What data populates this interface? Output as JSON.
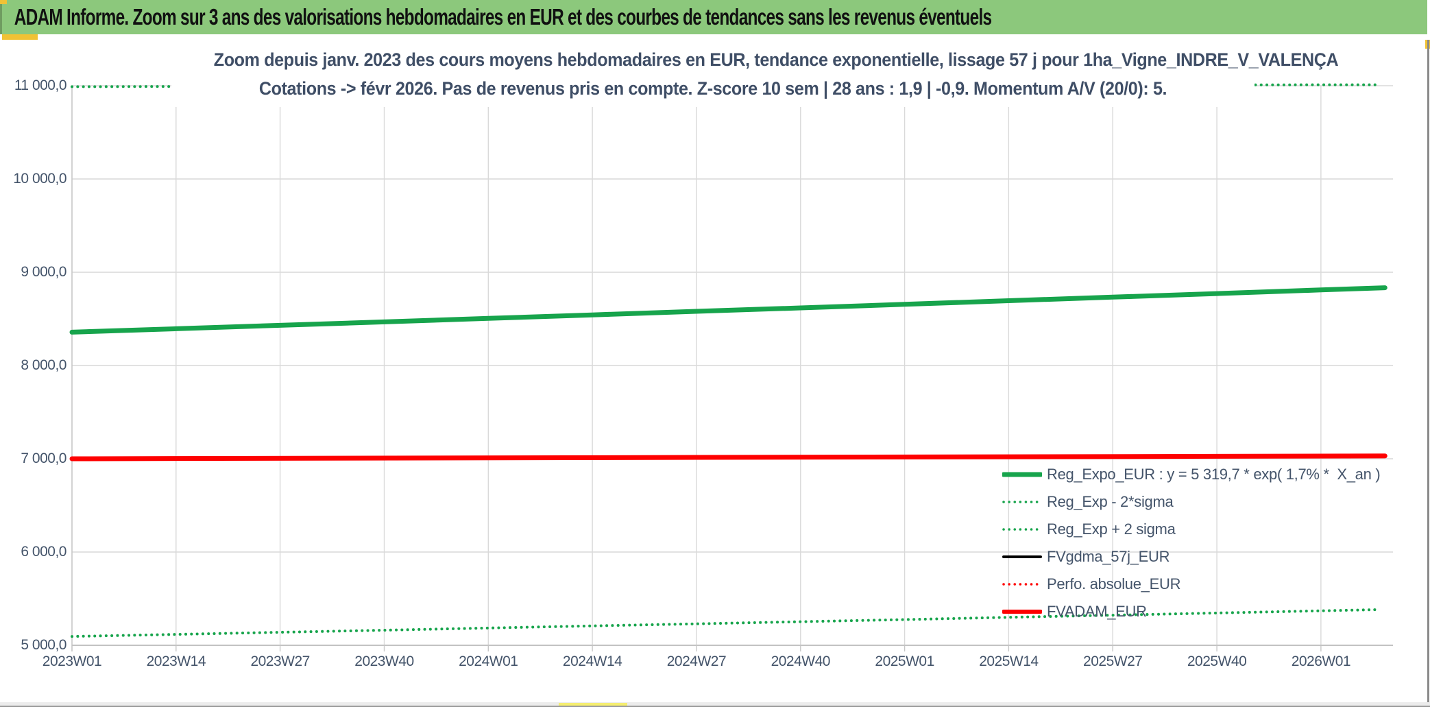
{
  "header": {
    "title": "ADAM Informe. Zoom sur 3 ans des valorisations hebdomadaires en EUR et des courbes de tendances sans les revenus éventuels"
  },
  "colors": {
    "header_bg": "#8cc87c",
    "accent_yellow": "#f0c235",
    "series_green": "#17a44c",
    "series_red": "#fe0000",
    "series_black": "#000000",
    "text_blue_gray": "#44546a",
    "gridline": "#d9d9d9"
  },
  "chart_data": {
    "type": "line",
    "title_line1": "Zoom depuis janv. 2023 des cours moyens hebdomadaires en EUR, tendance exponentielle, lissage 57 j pour 1ha_Vigne_INDRE_V_VALENÇA",
    "title_line2": "Cotations -> févr 2026. Pas de revenus pris en compte. Z-score 10 sem | 28 ans : 1,9 | -0,9. Momentum A/V (20/0): 5.",
    "xlabel": "",
    "ylabel": "",
    "ylim": [
      5000,
      11000
    ],
    "grid": true,
    "legend_position": "inside-bottom-right",
    "y_tick_values": [
      11000,
      10000,
      9000,
      8000,
      7000,
      6000,
      5000
    ],
    "y_tick_labels": [
      "11 000,0",
      "10 000,0",
      "9 000,0",
      "8 000,0",
      "7 000,0",
      "6 000,0",
      "5 000,0"
    ],
    "x_tick_labels": [
      "2023W01",
      "2023W14",
      "2023W27",
      "2023W40",
      "2024W01",
      "2024W14",
      "2024W27",
      "2024W40",
      "2025W01",
      "2025W14",
      "2025W27",
      "2025W40",
      "2026W01"
    ],
    "x_tick_weeks": [
      0,
      13,
      26,
      39,
      52,
      65,
      78,
      91,
      104,
      117,
      130,
      143,
      156
    ],
    "x_total_weeks": 165,
    "series": [
      {
        "id": "reg-exp-plus-2sigma",
        "name": "Reg_Exp + 2 sigma",
        "color": "#17a44c",
        "style": "dotted",
        "width": 4,
        "x_weeks": [
          0,
          13,
          26,
          39,
          52,
          65,
          78,
          91,
          104,
          117,
          130,
          143,
          156,
          163
        ],
        "values": [
          10990,
          10992,
          10993,
          10995,
          10997,
          10998,
          11000,
          11002,
          11003,
          11005,
          11007,
          11008,
          11010,
          11010
        ]
      },
      {
        "id": "reg-exp-minus-2sigma",
        "name": "Reg_Exp - 2*sigma",
        "color": "#17a44c",
        "style": "dotted",
        "width": 4,
        "x_weeks": [
          0,
          13,
          26,
          39,
          52,
          65,
          78,
          91,
          104,
          117,
          130,
          143,
          156,
          163
        ],
        "values": [
          5095,
          5117,
          5140,
          5162,
          5185,
          5208,
          5230,
          5253,
          5276,
          5300,
          5323,
          5346,
          5370,
          5382
        ]
      },
      {
        "id": "reg-expo-eur",
        "name": "Reg_Expo_EUR : y = 5 319,7 * exp( 1,7% *  X_an )",
        "color": "#17a44c",
        "style": "solid",
        "width": 7,
        "x_weeks": [
          0,
          13,
          26,
          39,
          52,
          65,
          78,
          91,
          104,
          117,
          130,
          143,
          156,
          164
        ],
        "values": [
          8357,
          8394,
          8431,
          8468,
          8505,
          8543,
          8581,
          8618,
          8656,
          8695,
          8733,
          8771,
          8810,
          8834
        ]
      },
      {
        "id": "fvgdma-57j-eur",
        "name": "FVgdma_57j_EUR",
        "color": "#000000",
        "style": "solid",
        "width": 4,
        "x_weeks": [
          0,
          164
        ],
        "values": [
          7000,
          7030
        ]
      },
      {
        "id": "perfo-absolue-eur",
        "name": "Perfo. absolue_EUR",
        "color": "#fe0000",
        "style": "dotted",
        "width": 4,
        "x_weeks": [
          0,
          164
        ],
        "values": [
          7000,
          7030
        ]
      },
      {
        "id": "fvadam-eur",
        "name": "FVADAM_EUR",
        "color": "#fe0000",
        "style": "solid",
        "width": 7,
        "x_weeks": [
          0,
          164
        ],
        "values": [
          7000,
          7030
        ]
      }
    ]
  },
  "legend": {
    "items": [
      {
        "label": "Reg_Expo_EUR : y = 5 319,7 * exp( 1,7% *  X_an )",
        "color": "#17a44c",
        "style": "solid",
        "width": 7
      },
      {
        "label": "Reg_Exp - 2*sigma",
        "color": "#17a44c",
        "style": "dotted",
        "width": 3.5
      },
      {
        "label": "Reg_Exp + 2 sigma",
        "color": "#17a44c",
        "style": "dotted",
        "width": 3.5
      },
      {
        "label": "FVgdma_57j_EUR",
        "color": "#000000",
        "style": "solid",
        "width": 4
      },
      {
        "label": "Perfo. absolue_EUR",
        "color": "#fe0000",
        "style": "dotted",
        "width": 3.5
      },
      {
        "label": "FVADAM_EUR",
        "color": "#fe0000",
        "style": "solid",
        "width": 6
      }
    ]
  }
}
